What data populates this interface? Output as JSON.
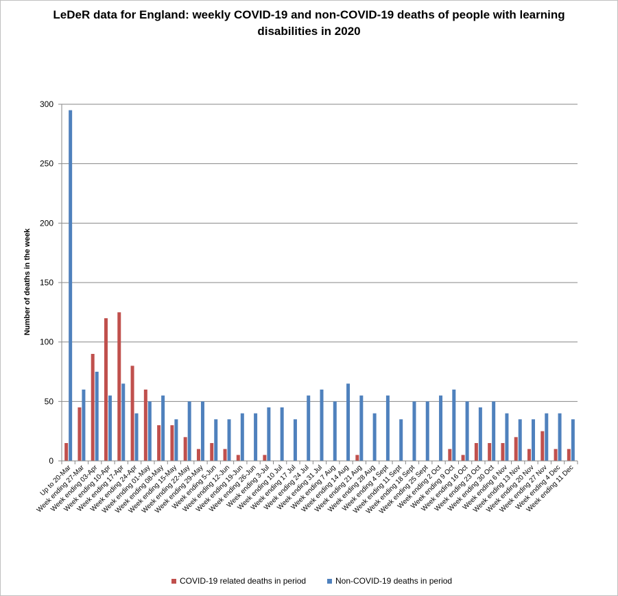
{
  "chart_data": {
    "type": "bar",
    "title": "LeDeR data for England: weekly COVID-19 and non-COVID-19 deaths of people with learning disabilities in 2020",
    "title_lines": [
      "LeDeR data for England: weekly COVID-19 and non-COVID-19 deaths of people with learning",
      "disabilities in 2020"
    ],
    "xlabel": "",
    "ylabel": "Number of deaths in the week",
    "ylim": [
      0,
      300
    ],
    "yticks": [
      0,
      50,
      100,
      150,
      200,
      250,
      300
    ],
    "grid": true,
    "legend_position": "bottom",
    "categories": [
      "Up to 20-Mar",
      "Week ending 27-Mar",
      "Week ending 03-Apr",
      "Week ending 10-Apr",
      "Week ending 17-Apr",
      "Week ending 24-Apr",
      "Week ending 01-May",
      "Week ending 08-May",
      "Week ending 15-May",
      "Week ending 22-May",
      "Week ending 29-May",
      "Week ending 5-Jun",
      "Week ending 12-Jun",
      "Week ending 19-Jun",
      "Week ending 26-Jun",
      "Week ending 3-Jul",
      "Week ending 10 Jul",
      "Week ending 17 Jul",
      "Week ending 24 Jul",
      "Week ending 31 Jul",
      "Week ending 7 Aug",
      "Week ending 14 Aug",
      "Week ending 21 Aug",
      "Week ending 28 Aug",
      "Week ending 4 Sept",
      "Week ending 11 Sept",
      "Week ending 18 Sept",
      "Week ending 25 Sept",
      "Week ending 2 Oct",
      "Week ending 9 Oct",
      "Week ending 16 Oct",
      "Week ending 23 Oct",
      "Week ending 30 Oct",
      "Week ending 6 Nov",
      "Week ending 13 Nov",
      "Week ending 20 Nov",
      "Week ending 27 Nov",
      "Week ending 4 Dec",
      "Week ending 11 Dec"
    ],
    "series": [
      {
        "name": "COVID-19 related deaths in period",
        "color": "#c0504d",
        "values": [
          15,
          45,
          90,
          120,
          125,
          80,
          60,
          30,
          30,
          20,
          10,
          15,
          10,
          5,
          0,
          5,
          0,
          0,
          0,
          0,
          0,
          0,
          5,
          0,
          0,
          0,
          0,
          0,
          0,
          10,
          5,
          15,
          15,
          15,
          20,
          10,
          25,
          10,
          10
        ]
      },
      {
        "name": "Non-COVID-19 deaths in period",
        "color": "#4f81bd",
        "values": [
          295,
          60,
          75,
          55,
          65,
          40,
          50,
          55,
          35,
          50,
          50,
          35,
          35,
          40,
          40,
          45,
          45,
          35,
          55,
          60,
          50,
          65,
          55,
          40,
          55,
          35,
          50,
          50,
          55,
          60,
          50,
          45,
          50,
          40,
          35,
          35,
          40,
          40,
          35
        ]
      }
    ]
  }
}
